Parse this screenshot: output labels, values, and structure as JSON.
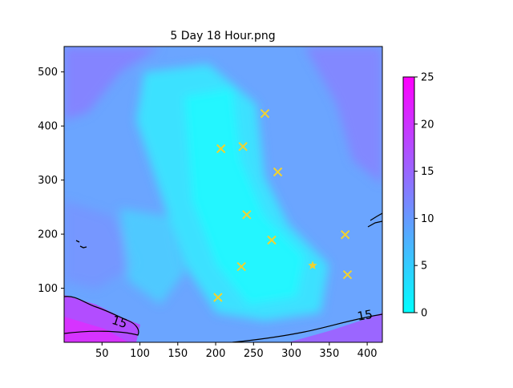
{
  "chart_data": {
    "type": "heatmap",
    "title": "5 Day 18 Hour.png",
    "colormap": "cool",
    "colormap_colors": [
      "#00ffff",
      "#ff00ff"
    ],
    "xlim": [
      0,
      420
    ],
    "ylim": [
      0,
      547
    ],
    "x_ticks": [
      50,
      100,
      150,
      200,
      250,
      300,
      350,
      400
    ],
    "x_tick_labels": [
      "50",
      "100",
      "150",
      "200",
      "250",
      "300",
      "350",
      "400"
    ],
    "y_ticks": [
      100,
      200,
      300,
      400,
      500
    ],
    "y_tick_labels": [
      "100",
      "200",
      "300",
      "400",
      "500"
    ],
    "colorbar": {
      "min": 0,
      "max": 25,
      "ticks": [
        0,
        5,
        10,
        15,
        20,
        25
      ],
      "tick_labels": [
        "0",
        "5",
        "10",
        "15",
        "20",
        "25"
      ]
    },
    "contour_labels": [
      {
        "text": "15",
        "x": 388,
        "y": 40
      },
      {
        "text": "15",
        "x": 62,
        "y": 35
      }
    ],
    "markers_x": [
      {
        "x": 265,
        "y": 423
      },
      {
        "x": 207,
        "y": 358
      },
      {
        "x": 236,
        "y": 362
      },
      {
        "x": 282,
        "y": 315
      },
      {
        "x": 241,
        "y": 236
      },
      {
        "x": 274,
        "y": 189
      },
      {
        "x": 371,
        "y": 199
      },
      {
        "x": 234,
        "y": 140
      },
      {
        "x": 374,
        "y": 125
      },
      {
        "x": 203,
        "y": 83
      }
    ],
    "markers_star": [
      {
        "x": 328,
        "y": 142
      }
    ],
    "marker_color": "#f2d22e"
  }
}
